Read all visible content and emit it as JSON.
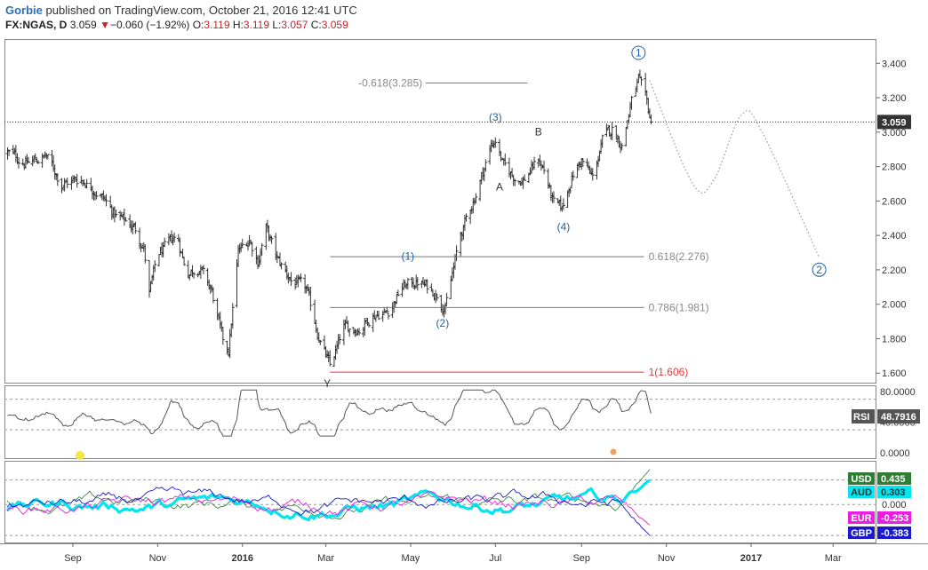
{
  "header": {
    "author": "Gorbie",
    "published": "published on TradingView.com, October 21, 2016 12:41 UTC",
    "symbol": "FX:NGAS, D",
    "last": "3.059",
    "change_arrow": "▼",
    "change": "−0.060 (−1.92%)",
    "open_label": "O:",
    "open": "3.119",
    "high_label": "H:",
    "high": "3.119",
    "low_label": "L:",
    "low": "3.057",
    "close_label": "C:",
    "close": "3.059"
  },
  "colors": {
    "price_bars": "#333333",
    "fib_lines": "#787878",
    "target_line": "#e53935",
    "wave_labels": "#1f5fa8",
    "projection": "#999999",
    "rsi_line": "#555555",
    "usd": "#2e7d32",
    "aud": "#00e5ee",
    "eur": "#e91ee0",
    "gbp": "#1a1acc"
  },
  "chart_data": [
    {
      "type": "line",
      "name": "FX:NGAS daily price with Elliott wave count",
      "x_ticks": [
        "Sep",
        "Nov",
        "2016",
        "Mar",
        "May",
        "Jul",
        "Sep",
        "Nov",
        "2017",
        "Mar"
      ],
      "y_ticks": [
        "1.600",
        "1.800",
        "2.000",
        "2.200",
        "2.400",
        "2.600",
        "2.800",
        "3.000",
        "3.200",
        "3.400"
      ],
      "ylim": [
        1.56,
        3.52
      ],
      "last_price_label": "3.059",
      "anchors": [
        {
          "date": "2015-07-16",
          "price": 2.88
        },
        {
          "date": "2015-07-30",
          "price": 2.82
        },
        {
          "date": "2015-08-13",
          "price": 2.86
        },
        {
          "date": "2015-08-24",
          "price": 2.7
        },
        {
          "date": "2015-09-07",
          "price": 2.73
        },
        {
          "date": "2015-09-21",
          "price": 2.64
        },
        {
          "date": "2015-10-01",
          "price": 2.52
        },
        {
          "date": "2015-10-15",
          "price": 2.45
        },
        {
          "date": "2015-10-22",
          "price": 2.33
        },
        {
          "date": "2015-10-26",
          "price": 2.06
        },
        {
          "date": "2015-11-01",
          "price": 2.28
        },
        {
          "date": "2015-11-15",
          "price": 2.4
        },
        {
          "date": "2015-11-22",
          "price": 2.18
        },
        {
          "date": "2015-12-01",
          "price": 2.22
        },
        {
          "date": "2015-12-10",
          "price": 2.07
        },
        {
          "date": "2015-12-18",
          "price": 1.78
        },
        {
          "date": "2015-12-22",
          "price": 1.73
        },
        {
          "date": "2015-12-29",
          "price": 2.3
        },
        {
          "date": "2016-01-06",
          "price": 2.38
        },
        {
          "date": "2016-01-12",
          "price": 2.25
        },
        {
          "date": "2016-01-18",
          "price": 2.44
        },
        {
          "date": "2016-01-26",
          "price": 2.26
        },
        {
          "date": "2016-02-05",
          "price": 2.14
        },
        {
          "date": "2016-02-16",
          "price": 2.08
        },
        {
          "date": "2016-02-24",
          "price": 1.84
        },
        {
          "date": "2016-03-02",
          "price": 1.68
        },
        {
          "date": "2016-03-04",
          "price": 1.63
        },
        {
          "date": "2016-03-14",
          "price": 1.86
        },
        {
          "date": "2016-03-25",
          "price": 1.86
        },
        {
          "date": "2016-04-04",
          "price": 1.94
        },
        {
          "date": "2016-04-15",
          "price": 1.96
        },
        {
          "date": "2016-04-25",
          "price": 2.1
        },
        {
          "date": "2016-05-05",
          "price": 2.13
        },
        {
          "date": "2016-05-13",
          "price": 2.1
        },
        {
          "date": "2016-05-20",
          "price": 2.06
        },
        {
          "date": "2016-05-26",
          "price": 1.98
        },
        {
          "date": "2016-06-06",
          "price": 2.4
        },
        {
          "date": "2016-06-16",
          "price": 2.62
        },
        {
          "date": "2016-06-28",
          "price": 2.92
        },
        {
          "date": "2016-07-01",
          "price": 2.96
        },
        {
          "date": "2016-07-07",
          "price": 2.8
        },
        {
          "date": "2016-07-14",
          "price": 2.74
        },
        {
          "date": "2016-07-21",
          "price": 2.72
        },
        {
          "date": "2016-08-01",
          "price": 2.84
        },
        {
          "date": "2016-08-05",
          "price": 2.78
        },
        {
          "date": "2016-08-12",
          "price": 2.58
        },
        {
          "date": "2016-08-18",
          "price": 2.55
        },
        {
          "date": "2016-08-25",
          "price": 2.74
        },
        {
          "date": "2016-09-01",
          "price": 2.84
        },
        {
          "date": "2016-09-09",
          "price": 2.73
        },
        {
          "date": "2016-09-16",
          "price": 2.95
        },
        {
          "date": "2016-09-23",
          "price": 3.02
        },
        {
          "date": "2016-09-30",
          "price": 2.93
        },
        {
          "date": "2016-10-07",
          "price": 3.18
        },
        {
          "date": "2016-10-12",
          "price": 3.3
        },
        {
          "date": "2016-10-17",
          "price": 3.18
        },
        {
          "date": "2016-10-21",
          "price": 3.059
        }
      ],
      "fib_levels": [
        {
          "label": "-0.618(3.285)",
          "price": 3.285,
          "from": "2016-05-12",
          "to": "2016-07-24",
          "color": "#787878"
        },
        {
          "label": "0.618(2.276)",
          "price": 2.276,
          "from": "2016-03-04",
          "to": "2016-10-16",
          "color": "#787878"
        },
        {
          "label": "0.786(1.981)",
          "price": 1.981,
          "from": "2016-03-04",
          "to": "2016-10-16",
          "color": "#787878"
        },
        {
          "label": "1(1.606)",
          "price": 1.606,
          "from": "2016-03-04",
          "to": "2016-10-16",
          "color": "#e53935"
        }
      ],
      "wave_labels": [
        {
          "label": "1",
          "date": "2016-10-12",
          "price": 3.44,
          "circled": true
        },
        {
          "label": "(3)",
          "date": "2016-07-01",
          "price": 3.065
        },
        {
          "label": "B",
          "date": "2016-08-01",
          "price": 2.98
        },
        {
          "label": "A",
          "date": "2016-07-04",
          "price": 2.66
        },
        {
          "label": "(4)",
          "date": "2016-08-19",
          "price": 2.43
        },
        {
          "label": "(1)",
          "date": "2016-04-29",
          "price": 2.26
        },
        {
          "label": "(2)",
          "date": "2016-05-24",
          "price": 1.87
        },
        {
          "label": "Y",
          "date": "2016-03-02",
          "price": 1.52
        },
        {
          "label": "2",
          "date": "2017-02-19",
          "price": 2.18,
          "circled": true
        }
      ],
      "projection": [
        {
          "date": "2016-10-20",
          "price": 3.3
        },
        {
          "date": "2016-11-20",
          "price": 2.7
        },
        {
          "date": "2016-12-05",
          "price": 2.72
        },
        {
          "date": "2016-12-25",
          "price": 3.1
        },
        {
          "date": "2017-01-09",
          "price": 3.0
        },
        {
          "date": "2017-02-19",
          "price": 2.27
        }
      ]
    },
    {
      "type": "line",
      "name": "RSI",
      "y_ticks": [
        "0.0000",
        "40.0000",
        "80.0000"
      ],
      "ylim": [
        -8,
        88
      ],
      "guides": [
        70,
        30
      ],
      "last_value_label": "48.7916",
      "label": "RSI"
    },
    {
      "type": "line",
      "name": "Currency strength",
      "y_ticks": [
        "0.000"
      ],
      "ylim": [
        -0.48,
        0.54
      ],
      "guides": [
        0.303,
        -0.383
      ],
      "series": [
        {
          "name": "USD",
          "last": "0.435",
          "color": "#2e7d32"
        },
        {
          "name": "AUD",
          "last": "0.303",
          "color": "#00e5ee"
        },
        {
          "name": "EUR",
          "last": "-0.253",
          "color": "#e91ee0"
        },
        {
          "name": "GBP",
          "last": "-0.383",
          "color": "#1a1acc"
        }
      ]
    }
  ]
}
